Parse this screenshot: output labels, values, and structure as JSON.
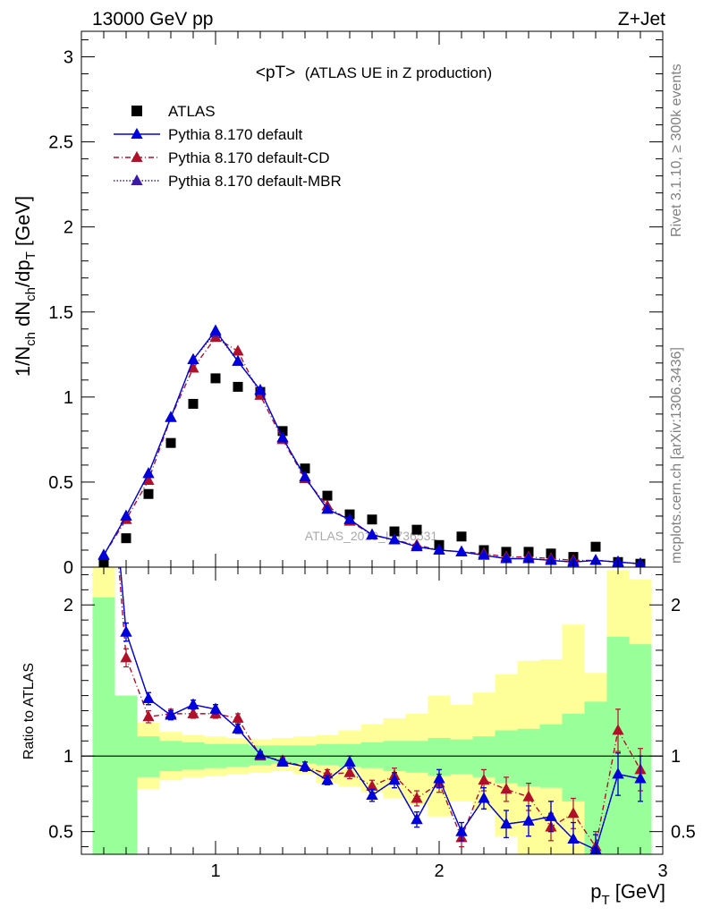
{
  "header": {
    "left": "13000 GeV pp",
    "right": "Z+Jet"
  },
  "side_labels": {
    "rivet": "Rivet 3.1.10, ≥ 300k events",
    "mcplots": "mcplots.cern.ch [arXiv:1306.3436]"
  },
  "watermark": "ATLAS_2019_I1736531",
  "chart_data": [
    {
      "type": "scatter",
      "title": "<pT> (ATLAS UE in Z production)",
      "title_main": "<pT>",
      "title_sub": "(ATLAS UE in Z production)",
      "ylabel": "1/N_ch dN_ch/dp_T [GeV]",
      "xlabel": "p_T [GeV]",
      "xlim": [
        0.4,
        3.0
      ],
      "ylim": [
        0,
        3.15
      ],
      "x_ticks": [
        "1",
        "2",
        "3"
      ],
      "y_ticks": [
        "0",
        "0.5",
        "1",
        "1.5",
        "2",
        "2.5",
        "3"
      ],
      "legend_position": "top-left",
      "x": [
        0.5,
        0.6,
        0.7,
        0.8,
        0.9,
        1.0,
        1.1,
        1.2,
        1.3,
        1.4,
        1.5,
        1.6,
        1.7,
        1.8,
        1.9,
        2.0,
        2.1,
        2.2,
        2.3,
        2.4,
        2.5,
        2.6,
        2.7,
        2.8,
        2.9
      ],
      "series": [
        {
          "name": "ATLAS",
          "color": "#000000",
          "marker": "square",
          "values": [
            0.02,
            0.17,
            0.43,
            0.73,
            0.96,
            1.11,
            1.06,
            1.03,
            0.8,
            0.58,
            0.42,
            0.31,
            0.28,
            0.21,
            0.22,
            0.13,
            0.18,
            0.1,
            0.09,
            0.09,
            0.08,
            0.06,
            0.12,
            0.03,
            0.02
          ]
        },
        {
          "name": "Pythia 8.170 default",
          "color": "#0000dd",
          "line": "solid",
          "marker": "triangle",
          "values": [
            0.07,
            0.3,
            0.55,
            0.88,
            1.22,
            1.39,
            1.21,
            1.04,
            0.76,
            0.53,
            0.34,
            0.28,
            0.19,
            0.16,
            0.12,
            0.1,
            0.09,
            0.07,
            0.05,
            0.05,
            0.04,
            0.03,
            0.04,
            0.03,
            0.02
          ]
        },
        {
          "name": "Pythia 8.170 default-CD",
          "color": "#b0102a",
          "line": "dashdot",
          "marker": "triangle",
          "values": [
            0.07,
            0.28,
            0.51,
            0.88,
            1.17,
            1.35,
            1.27,
            1.01,
            0.75,
            0.52,
            0.36,
            0.27,
            0.19,
            0.16,
            0.13,
            0.1,
            0.09,
            0.08,
            0.06,
            0.06,
            0.05,
            0.04,
            0.04,
            0.03,
            0.02
          ]
        },
        {
          "name": "Pythia 8.170 default-MBR",
          "color": "#3a1aa6",
          "line": "dotted",
          "marker": "triangle",
          "values": [
            0.07,
            0.3,
            0.55,
            0.88,
            1.22,
            1.38,
            1.21,
            1.04,
            0.76,
            0.53,
            0.34,
            0.28,
            0.19,
            0.16,
            0.12,
            0.1,
            0.09,
            0.07,
            0.05,
            0.05,
            0.04,
            0.03,
            0.04,
            0.03,
            0.02
          ]
        }
      ]
    },
    {
      "type": "line",
      "ylabel": "Ratio to ATLAS",
      "xlabel": "p_T [GeV]",
      "xlim": [
        0.4,
        3.0
      ],
      "ylim": [
        0.35,
        2.25
      ],
      "y_ticks": [
        "0.5",
        "1",
        "2"
      ],
      "x_ticks": [
        "1",
        "2",
        "3"
      ],
      "reference_line": 1,
      "x": [
        0.5,
        0.6,
        0.7,
        0.8,
        0.9,
        1.0,
        1.1,
        1.2,
        1.3,
        1.4,
        1.5,
        1.6,
        1.7,
        1.8,
        1.9,
        2.0,
        2.1,
        2.2,
        2.3,
        2.4,
        2.5,
        2.6,
        2.7,
        2.8,
        2.9
      ],
      "bands": {
        "bin_edges": [
          0.45,
          0.55,
          0.65,
          0.75,
          0.85,
          0.95,
          1.05,
          1.15,
          1.25,
          1.35,
          1.45,
          1.55,
          1.65,
          1.75,
          1.85,
          1.95,
          2.05,
          2.15,
          2.25,
          2.35,
          2.45,
          2.55,
          2.65,
          2.75,
          2.85,
          2.95
        ],
        "stat_color": "#99ff99",
        "syst_color": "#ffff99",
        "stat_low": [
          0.35,
          0.35,
          0.86,
          0.9,
          0.91,
          0.92,
          0.93,
          0.94,
          0.95,
          0.95,
          0.94,
          0.93,
          0.92,
          0.9,
          0.89,
          0.87,
          0.88,
          0.86,
          0.82,
          0.8,
          0.79,
          0.7,
          0.35,
          0.35,
          0.35
        ],
        "stat_high": [
          2.05,
          1.4,
          1.13,
          1.1,
          1.09,
          1.08,
          1.08,
          1.07,
          1.07,
          1.07,
          1.08,
          1.08,
          1.09,
          1.1,
          1.1,
          1.12,
          1.11,
          1.13,
          1.17,
          1.18,
          1.21,
          1.28,
          1.36,
          1.79,
          1.74
        ],
        "syst_low": [
          0.35,
          0.59,
          0.78,
          0.84,
          0.86,
          0.87,
          0.88,
          0.89,
          0.9,
          0.88,
          0.82,
          0.8,
          0.76,
          0.72,
          0.68,
          0.6,
          0.7,
          0.64,
          0.47,
          0.35,
          0.35,
          0.35,
          0.35,
          0.35,
          0.35
        ],
        "syst_high": [
          2.25,
          1.4,
          1.22,
          1.16,
          1.14,
          1.13,
          1.12,
          1.11,
          1.12,
          1.13,
          1.14,
          1.17,
          1.21,
          1.25,
          1.28,
          1.4,
          1.34,
          1.42,
          1.54,
          1.63,
          1.64,
          1.87,
          1.55,
          2.23,
          2.17
        ]
      },
      "series": [
        {
          "name": "Pythia 8.170 default",
          "color": "#0000dd",
          "values": [
            3.5,
            1.82,
            1.38,
            1.27,
            1.34,
            1.31,
            1.18,
            1.01,
            0.96,
            0.93,
            0.84,
            0.96,
            0.74,
            0.84,
            0.58,
            0.85,
            0.5,
            0.72,
            0.55,
            0.57,
            0.6,
            0.45,
            0.38,
            0.88,
            0.85
          ],
          "errors": [
            0.5,
            0.06,
            0.04,
            0.03,
            0.03,
            0.03,
            0.03,
            0.02,
            0.02,
            0.03,
            0.03,
            0.04,
            0.04,
            0.05,
            0.05,
            0.06,
            0.06,
            0.07,
            0.09,
            0.1,
            0.1,
            0.11,
            0.1,
            0.14,
            0.15
          ]
        },
        {
          "name": "Pythia 8.170 default-CD",
          "color": "#b0102a",
          "values": [
            3.5,
            1.65,
            1.26,
            1.28,
            1.28,
            1.28,
            1.25,
            1.0,
            0.97,
            0.93,
            0.88,
            0.89,
            0.8,
            0.87,
            0.72,
            0.82,
            0.46,
            0.84,
            0.78,
            0.73,
            0.53,
            0.62,
            0.4,
            1.17,
            0.91
          ],
          "errors": [
            0.5,
            0.06,
            0.04,
            0.03,
            0.03,
            0.03,
            0.03,
            0.02,
            0.02,
            0.03,
            0.03,
            0.04,
            0.04,
            0.05,
            0.05,
            0.06,
            0.06,
            0.07,
            0.08,
            0.09,
            0.09,
            0.1,
            0.1,
            0.14,
            0.14
          ]
        },
        {
          "name": "Pythia 8.170 default-MBR",
          "color": "#3a1aa6",
          "values": [
            3.5,
            1.82,
            1.38,
            1.27,
            1.34,
            1.31,
            1.18,
            1.01,
            0.96,
            0.93,
            0.84,
            0.96,
            0.74,
            0.84,
            0.58,
            0.85,
            0.5,
            0.72,
            0.55,
            0.57,
            0.6,
            0.45,
            0.38,
            0.88,
            0.85
          ],
          "errors": [
            0.5,
            0.06,
            0.04,
            0.03,
            0.03,
            0.03,
            0.03,
            0.02,
            0.02,
            0.03,
            0.03,
            0.04,
            0.04,
            0.05,
            0.05,
            0.06,
            0.06,
            0.07,
            0.09,
            0.1,
            0.1,
            0.11,
            0.1,
            0.14,
            0.15
          ]
        }
      ]
    }
  ]
}
